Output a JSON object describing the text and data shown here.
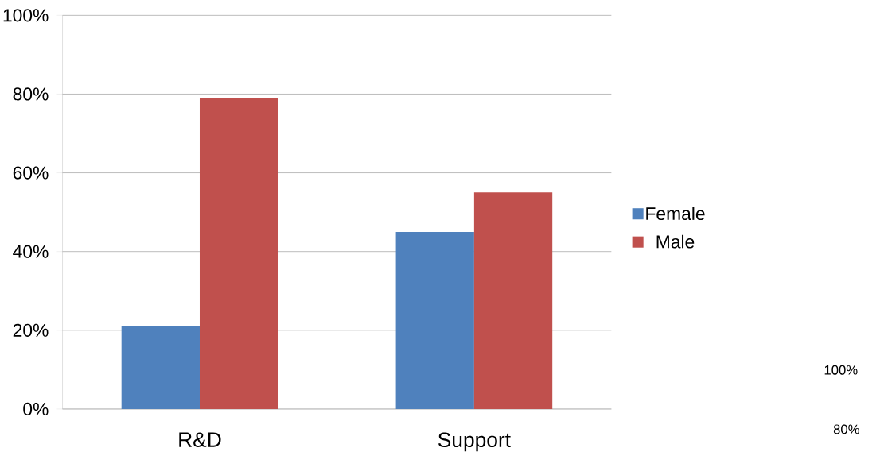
{
  "chart_data": {
    "type": "bar",
    "categories": [
      "R&D",
      "Support"
    ],
    "series": [
      {
        "name": "Female",
        "color": "#4f81bd",
        "values": [
          21,
          45
        ]
      },
      {
        "name": "Male",
        "color": "#c0504d",
        "values": [
          79,
          55
        ]
      }
    ],
    "ylim": [
      0,
      100
    ],
    "yticks": [
      {
        "value": 0,
        "label": "0%"
      },
      {
        "value": 20,
        "label": "20%"
      },
      {
        "value": 40,
        "label": "40%"
      },
      {
        "value": 60,
        "label": "60%"
      },
      {
        "value": 80,
        "label": "80%"
      },
      {
        "value": 100,
        "label": "100%"
      }
    ],
    "grid": "y",
    "legend": "right",
    "annotations": [
      "100%",
      "80%"
    ]
  }
}
